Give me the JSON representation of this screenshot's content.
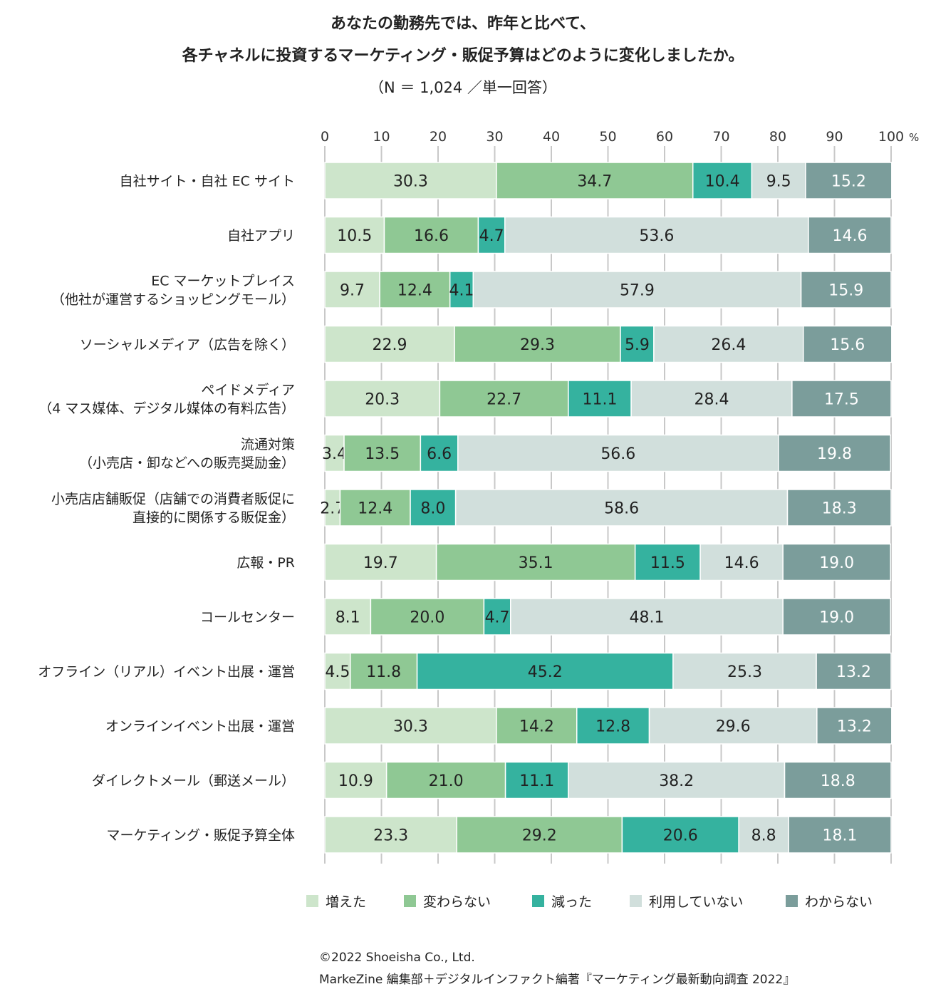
{
  "chart_data": {
    "type": "bar",
    "orientation": "horizontal",
    "stacked": true,
    "title_line1": "あなたの勤務先では、昨年と比べて、",
    "title_line2": "各チャネルに投資するマーケティング・販促予算はどのように変化しましたか。",
    "subtitle": "（N ＝ 1,024 ／単一回答）",
    "xlim": [
      0,
      100
    ],
    "xticks": [
      "0",
      "10",
      "20",
      "30",
      "40",
      "50",
      "60",
      "70",
      "80",
      "90",
      "100"
    ],
    "x_unit": "%",
    "grid": true,
    "legend_position": "bottom",
    "categories": [
      [
        "自社サイト・自社 EC サイト"
      ],
      [
        "自社アプリ"
      ],
      [
        "EC マーケットプレイス",
        "（他社が運営するショッピングモール）"
      ],
      [
        "ソーシャルメディア（広告を除く）"
      ],
      [
        "ペイドメディア",
        "（4 マス媒体、デジタル媒体の有料広告）"
      ],
      [
        "流通対策",
        "（小売店・卸などへの販売奨励金）"
      ],
      [
        "小売店店舗販促（店舗での消費者販促に",
        "直接的に関係する販促金）"
      ],
      [
        "広報・PR"
      ],
      [
        "コールセンター"
      ],
      [
        "オフライン（リアル）イベント出展・運営"
      ],
      [
        "オンラインイベント出展・運営"
      ],
      [
        "ダイレクトメール（郵送メール）"
      ],
      [
        "マーケティング・販促予算全体"
      ]
    ],
    "series": [
      {
        "name": "増えた",
        "color": "#cde5cb",
        "text_color": "#222222",
        "values": [
          30.3,
          10.5,
          9.7,
          22.9,
          20.3,
          3.4,
          2.7,
          19.7,
          8.1,
          4.5,
          30.3,
          10.9,
          23.3
        ]
      },
      {
        "name": "変わらない",
        "color": "#8fc894",
        "text_color": "#222222",
        "values": [
          34.7,
          16.6,
          12.4,
          29.3,
          22.7,
          13.5,
          12.4,
          35.1,
          20.0,
          11.8,
          14.2,
          21.0,
          29.2
        ]
      },
      {
        "name": "減った",
        "color": "#35b29f",
        "text_color": "#222222",
        "values": [
          10.4,
          4.7,
          4.1,
          5.9,
          11.1,
          6.6,
          8.0,
          11.5,
          4.7,
          45.2,
          12.8,
          11.1,
          20.6
        ]
      },
      {
        "name": "利用していない",
        "color": "#d1dfdc",
        "text_color": "#222222",
        "values": [
          9.5,
          53.6,
          57.9,
          26.4,
          28.4,
          56.6,
          58.6,
          14.6,
          48.1,
          25.3,
          29.6,
          38.2,
          8.8
        ]
      },
      {
        "name": "わからない",
        "color": "#7b9d9b",
        "text_color": "#ffffff",
        "values": [
          15.2,
          14.6,
          15.9,
          15.6,
          17.5,
          19.8,
          18.3,
          19.0,
          19.0,
          13.2,
          13.2,
          18.8,
          18.1
        ]
      }
    ]
  },
  "footer": {
    "copyright": "©2022 Shoeisha Co., Ltd.",
    "source": "MarkeZine 編集部＋デジタルインファクト編著『マーケティング最新動向調査 2022』"
  }
}
